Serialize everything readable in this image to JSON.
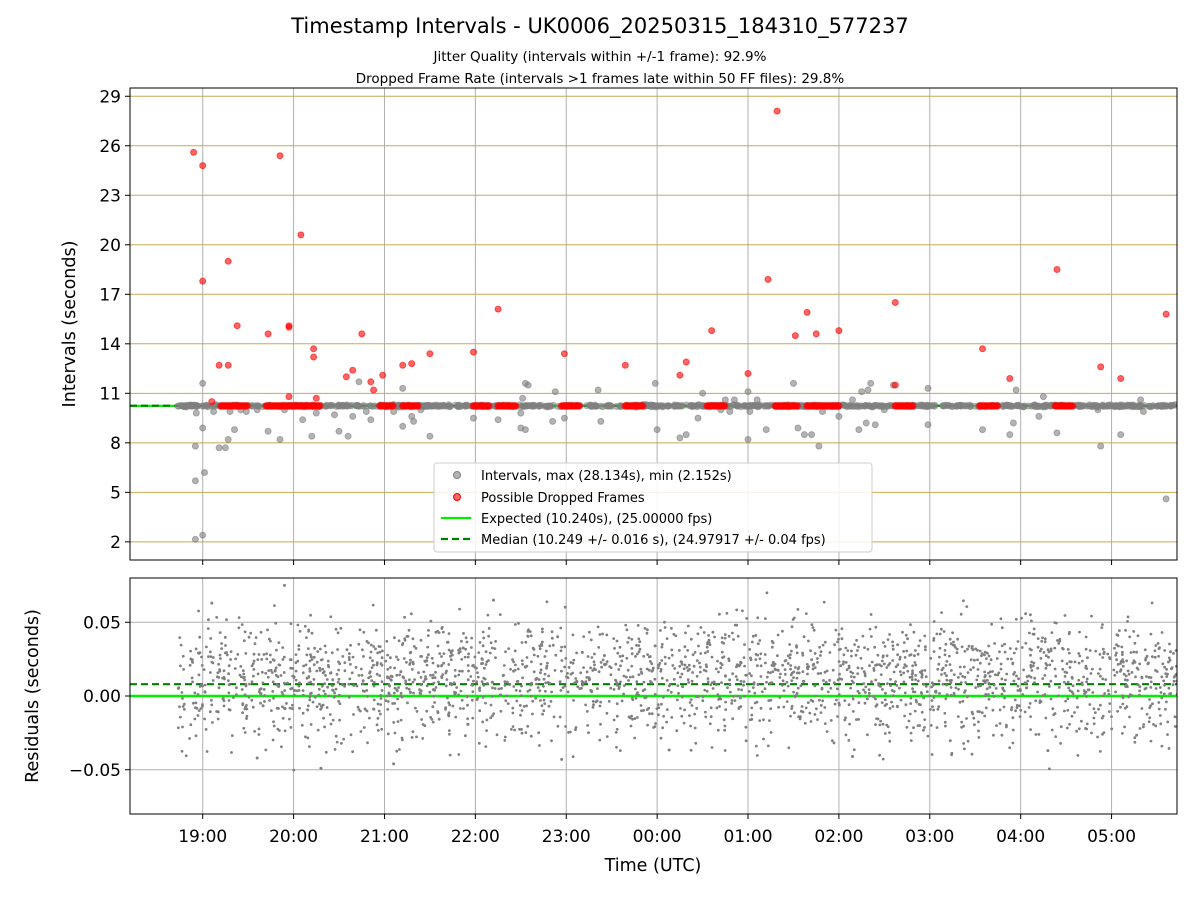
{
  "title": "Timestamp Intervals - UK0006_20250315_184310_577237",
  "subtitle_1": "Jitter Quality (intervals within +/-1 frame): 92.9%",
  "subtitle_2": "Dropped Frame Rate (intervals >1 frames late within 50 FF files): 29.8%",
  "colors": {
    "intervals": "#808080",
    "dropped": "#ff0000",
    "expected": "#00ee00",
    "median": "#007f00",
    "hgrid_top": "#c8a951",
    "grid": "#b0b0b0"
  },
  "chart_data": [
    {
      "type": "scatter",
      "name": "intervals",
      "ylabel": "Intervals (seconds)",
      "xlabel": "",
      "x_ticks": [
        "19:00",
        "20:00",
        "21:00",
        "22:00",
        "23:00",
        "00:00",
        "01:00",
        "02:00",
        "03:00",
        "04:00",
        "05:00"
      ],
      "x_tick_hours": [
        19,
        20,
        21,
        22,
        23,
        24,
        25,
        26,
        27,
        28,
        29
      ],
      "xlim_hours": [
        18.2,
        29.72
      ],
      "ylim": [
        0.9,
        29.5
      ],
      "y_ticks": [
        2,
        5,
        8,
        11,
        14,
        17,
        20,
        23,
        26,
        29
      ],
      "legend_position": "lower-center",
      "legend": [
        "Intervals, max (28.134s), min (2.152s)",
        "Possible Dropped Frames",
        "Expected (10.240s), (25.00000 fps)",
        "Median (10.249 +/- 0.016 s), (24.97917 +/- 0.04 fps)"
      ],
      "expected_interval": 10.24,
      "median_interval": 10.249,
      "series": [
        {
          "name": "Intervals, max (28.134s), min (2.152s)",
          "points": [
            [
              18.92,
              2.15
            ],
            [
              19.0,
              2.4
            ],
            [
              18.92,
              5.7
            ],
            [
              19.02,
              6.2
            ],
            [
              18.92,
              7.8
            ],
            [
              18.93,
              9.8
            ],
            [
              19.0,
              8.9
            ],
            [
              19.0,
              11.6
            ],
            [
              19.12,
              9.9
            ],
            [
              19.18,
              7.7
            ],
            [
              19.25,
              7.7
            ],
            [
              19.28,
              8.2
            ],
            [
              19.3,
              9.9
            ],
            [
              19.35,
              8.8
            ],
            [
              19.42,
              10.0
            ],
            [
              19.48,
              9.9
            ],
            [
              19.6,
              10.0
            ],
            [
              19.72,
              8.7
            ],
            [
              19.85,
              8.2
            ],
            [
              19.9,
              10.0
            ],
            [
              20.1,
              9.4
            ],
            [
              20.2,
              8.4
            ],
            [
              20.25,
              9.8
            ],
            [
              20.45,
              9.7
            ],
            [
              20.5,
              8.7
            ],
            [
              20.6,
              8.4
            ],
            [
              20.65,
              9.6
            ],
            [
              20.72,
              11.7
            ],
            [
              20.8,
              9.9
            ],
            [
              20.85,
              9.4
            ],
            [
              21.1,
              9.9
            ],
            [
              21.2,
              11.3
            ],
            [
              21.2,
              9.0
            ],
            [
              21.3,
              9.6
            ],
            [
              21.32,
              9.3
            ],
            [
              21.4,
              10.0
            ],
            [
              21.5,
              8.4
            ],
            [
              21.98,
              9.5
            ],
            [
              22.25,
              9.4
            ],
            [
              22.5,
              9.8
            ],
            [
              22.5,
              8.9
            ],
            [
              22.52,
              10.7
            ],
            [
              22.55,
              8.8
            ],
            [
              22.55,
              11.6
            ],
            [
              22.58,
              11.5
            ],
            [
              22.85,
              9.3
            ],
            [
              22.88,
              11.1
            ],
            [
              22.98,
              9.5
            ],
            [
              23.35,
              11.2
            ],
            [
              23.38,
              9.3
            ],
            [
              23.98,
              11.6
            ],
            [
              24.0,
              8.8
            ],
            [
              24.25,
              8.3
            ],
            [
              24.32,
              8.5
            ],
            [
              24.45,
              9.5
            ],
            [
              24.5,
              11.0
            ],
            [
              24.7,
              10.0
            ],
            [
              24.75,
              10.6
            ],
            [
              24.8,
              9.9
            ],
            [
              24.85,
              10.6
            ],
            [
              25.0,
              11.1
            ],
            [
              25.0,
              8.2
            ],
            [
              25.02,
              9.9
            ],
            [
              25.1,
              10.6
            ],
            [
              25.2,
              8.8
            ],
            [
              25.5,
              11.6
            ],
            [
              25.55,
              8.9
            ],
            [
              25.62,
              8.5
            ],
            [
              25.7,
              8.5
            ],
            [
              25.78,
              7.8
            ],
            [
              25.82,
              9.9
            ],
            [
              26.0,
              9.6
            ],
            [
              26.15,
              10.6
            ],
            [
              26.22,
              8.8
            ],
            [
              26.25,
              11.1
            ],
            [
              26.3,
              9.2
            ],
            [
              26.32,
              11.2
            ],
            [
              26.35,
              11.6
            ],
            [
              26.4,
              9.1
            ],
            [
              26.5,
              10.0
            ],
            [
              26.6,
              11.5
            ],
            [
              26.98,
              9.1
            ],
            [
              26.98,
              11.3
            ],
            [
              27.58,
              8.8
            ],
            [
              27.88,
              8.5
            ],
            [
              27.92,
              9.2
            ],
            [
              27.95,
              11.2
            ],
            [
              28.2,
              9.6
            ],
            [
              28.25,
              10.8
            ],
            [
              28.4,
              8.6
            ],
            [
              28.85,
              10.0
            ],
            [
              28.88,
              7.8
            ],
            [
              29.1,
              8.5
            ],
            [
              29.3,
              10.2
            ],
            [
              29.32,
              10.6
            ],
            [
              29.35,
              9.9
            ],
            [
              29.6,
              4.6
            ]
          ]
        },
        {
          "name": "Possible Dropped Frames",
          "points": [
            [
              18.9,
              25.6
            ],
            [
              19.0,
              24.8
            ],
            [
              19.0,
              17.8
            ],
            [
              19.1,
              10.5
            ],
            [
              19.18,
              12.7
            ],
            [
              19.28,
              19.0
            ],
            [
              19.28,
              12.7
            ],
            [
              19.38,
              15.1
            ],
            [
              19.72,
              14.6
            ],
            [
              19.85,
              25.4
            ],
            [
              19.95,
              15.0
            ],
            [
              19.95,
              15.1
            ],
            [
              19.95,
              10.8
            ],
            [
              20.08,
              20.6
            ],
            [
              20.22,
              13.7
            ],
            [
              20.22,
              13.2
            ],
            [
              20.25,
              10.7
            ],
            [
              20.58,
              12.0
            ],
            [
              20.65,
              12.4
            ],
            [
              20.75,
              14.6
            ],
            [
              20.85,
              11.7
            ],
            [
              20.88,
              11.2
            ],
            [
              20.98,
              12.1
            ],
            [
              21.2,
              12.7
            ],
            [
              21.3,
              12.8
            ],
            [
              21.5,
              13.4
            ],
            [
              21.98,
              13.5
            ],
            [
              22.25,
              16.1
            ],
            [
              22.98,
              13.4
            ],
            [
              23.65,
              12.7
            ],
            [
              24.25,
              12.1
            ],
            [
              24.32,
              12.9
            ],
            [
              24.6,
              14.8
            ],
            [
              25.0,
              12.2
            ],
            [
              25.22,
              17.9
            ],
            [
              25.32,
              28.1
            ],
            [
              25.52,
              14.5
            ],
            [
              25.65,
              15.9
            ],
            [
              25.75,
              14.6
            ],
            [
              26.0,
              14.8
            ],
            [
              26.62,
              16.5
            ],
            [
              26.62,
              11.5
            ],
            [
              27.58,
              13.7
            ],
            [
              27.88,
              11.9
            ],
            [
              28.4,
              18.5
            ],
            [
              28.88,
              12.6
            ],
            [
              29.1,
              11.9
            ],
            [
              29.6,
              15.8
            ]
          ],
          "clusters_at_10_24": [
            [
              19.2,
              19.5
            ],
            [
              19.7,
              20.3
            ],
            [
              20.95,
              21.1
            ],
            [
              21.2,
              21.38
            ],
            [
              21.98,
              22.15
            ],
            [
              22.25,
              22.45
            ],
            [
              22.95,
              23.15
            ],
            [
              23.65,
              23.85
            ],
            [
              24.55,
              24.75
            ],
            [
              25.3,
              25.55
            ],
            [
              25.65,
              26.0
            ],
            [
              26.62,
              26.82
            ],
            [
              27.55,
              27.75
            ],
            [
              28.38,
              28.58
            ]
          ]
        }
      ]
    },
    {
      "type": "scatter",
      "name": "residuals",
      "ylabel": "Residuals (seconds)",
      "xlabel": "Time (UTC)",
      "x_ticks": [
        "19:00",
        "20:00",
        "21:00",
        "22:00",
        "23:00",
        "00:00",
        "01:00",
        "02:00",
        "03:00",
        "04:00",
        "05:00"
      ],
      "x_tick_hours": [
        19,
        20,
        21,
        22,
        23,
        24,
        25,
        26,
        27,
        28,
        29
      ],
      "xlim_hours": [
        18.2,
        29.72
      ],
      "ylim": [
        -0.08,
        0.08
      ],
      "y_ticks": [
        0.05,
        0.0,
        -0.05
      ],
      "y_tick_labels": [
        "0.05",
        "0.00",
        "−0.05"
      ],
      "expected_residual": 0.0,
      "median_residual": 0.008,
      "series": [
        {
          "name": "residuals",
          "x_range_hours": [
            18.72,
            29.72
          ],
          "bands": [
            0.02,
            0.0,
            0.04,
            -0.02
          ],
          "spread": 0.01,
          "count": 2400,
          "outliers": [
            [
              19.1,
              0.063
            ],
            [
              19.9,
              0.075
            ],
            [
              22.2,
              0.065
            ],
            [
              20.3,
              -0.049
            ],
            [
              21.1,
              -0.046
            ],
            [
              19.6,
              -0.042
            ],
            [
              22.95,
              -0.043
            ],
            [
              26.15,
              -0.041
            ],
            [
              28.3,
              -0.037
            ]
          ]
        }
      ]
    }
  ]
}
